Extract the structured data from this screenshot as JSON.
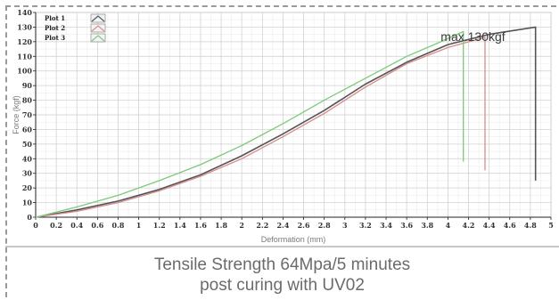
{
  "caption": {
    "line1": "Tensile Strength 64Mpa/5 minutes",
    "line2": "post curing with UV02"
  },
  "chart_data": {
    "type": "line",
    "xlabel": "Deformation (mm)",
    "ylabel": "Force (kgf)",
    "xlim": [
      0,
      5
    ],
    "ylim": [
      0,
      140
    ],
    "x_ticks": [
      "0",
      "0.2",
      "0.4",
      "0.6",
      "0.8",
      "1",
      "1.2",
      "1.4",
      "1.6",
      "1.8",
      "2",
      "2.2",
      "2.4",
      "2.6",
      "2.8",
      "3",
      "3.2",
      "3.4",
      "3.6",
      "3.8",
      "4",
      "4.2",
      "4.4",
      "4.6",
      "4.8",
      "5"
    ],
    "y_ticks": [
      "0",
      "10",
      "20",
      "30",
      "40",
      "50",
      "60",
      "70",
      "80",
      "90",
      "100",
      "110",
      "120",
      "130",
      "140"
    ],
    "grid": true,
    "legend_position": "top-left",
    "annotation": "max.130kgf",
    "series": [
      {
        "name": "Plot 1",
        "color": "#555555",
        "points": [
          [
            0,
            0
          ],
          [
            0.4,
            5
          ],
          [
            0.8,
            11
          ],
          [
            1.2,
            19
          ],
          [
            1.6,
            29
          ],
          [
            2.0,
            42
          ],
          [
            2.4,
            57
          ],
          [
            2.8,
            73
          ],
          [
            3.2,
            91
          ],
          [
            3.6,
            106
          ],
          [
            4.0,
            118
          ],
          [
            4.4,
            125
          ],
          [
            4.85,
            130
          ],
          [
            4.85,
            25
          ]
        ]
      },
      {
        "name": "Plot 2",
        "color": "#d98c8c",
        "points": [
          [
            0,
            0
          ],
          [
            0.4,
            4
          ],
          [
            0.8,
            10
          ],
          [
            1.2,
            18
          ],
          [
            1.6,
            28
          ],
          [
            2.0,
            40
          ],
          [
            2.4,
            55
          ],
          [
            2.8,
            71
          ],
          [
            3.2,
            89
          ],
          [
            3.6,
            105
          ],
          [
            4.0,
            116
          ],
          [
            4.36,
            123
          ],
          [
            4.36,
            32
          ]
        ]
      },
      {
        "name": "Plot 3",
        "color": "#7ccb7c",
        "points": [
          [
            0,
            0
          ],
          [
            0.4,
            7
          ],
          [
            0.8,
            15
          ],
          [
            1.2,
            25
          ],
          [
            1.6,
            36
          ],
          [
            2.0,
            49
          ],
          [
            2.4,
            64
          ],
          [
            2.8,
            80
          ],
          [
            3.2,
            95
          ],
          [
            3.6,
            110
          ],
          [
            3.9,
            119
          ],
          [
            4.15,
            127
          ],
          [
            4.15,
            38
          ]
        ]
      }
    ]
  }
}
